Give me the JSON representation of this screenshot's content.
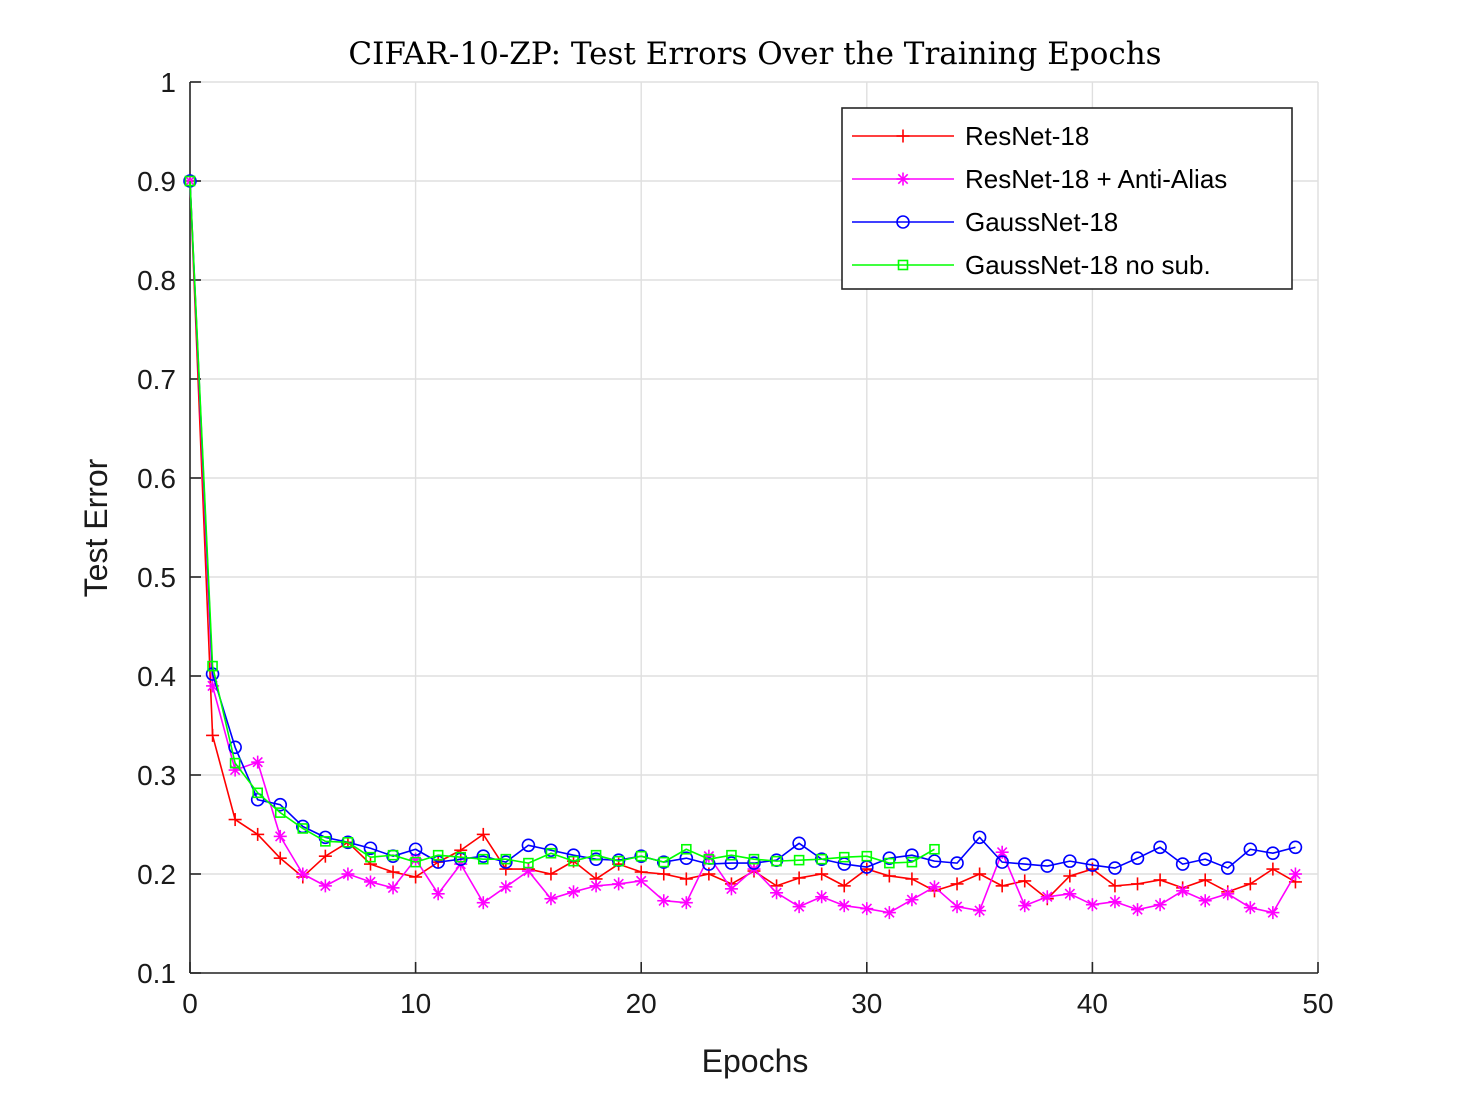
{
  "chart_data": {
    "type": "line",
    "title": "CIFAR-10-ZP: Test Errors Over the Training Epochs",
    "xlabel": "Epochs",
    "ylabel": "Test Error",
    "xlim": [
      0,
      50
    ],
    "ylim": [
      0.1,
      1
    ],
    "x_ticks": [
      0,
      10,
      20,
      30,
      40,
      50
    ],
    "y_ticks": [
      0.1,
      0.2,
      0.3,
      0.4,
      0.5,
      0.6,
      0.7,
      0.8,
      0.9,
      1
    ],
    "x_tick_labels": [
      "0",
      "10",
      "20",
      "30",
      "40",
      "50"
    ],
    "y_tick_labels": [
      "0.1",
      "0.2",
      "0.3",
      "0.4",
      "0.5",
      "0.6",
      "0.7",
      "0.8",
      "0.9",
      "1"
    ],
    "grid": true,
    "legend_position": "top-right",
    "series": [
      {
        "name": "ResNet-18",
        "color": "#ff0000",
        "marker": "plus",
        "x": [
          0,
          1,
          2,
          3,
          4,
          5,
          6,
          7,
          8,
          9,
          10,
          11,
          12,
          13,
          14,
          15,
          16,
          17,
          18,
          19,
          20,
          21,
          22,
          23,
          24,
          25,
          26,
          27,
          28,
          29,
          30,
          31,
          32,
          33,
          34,
          35,
          36,
          37,
          38,
          39,
          40,
          41,
          42,
          43,
          44,
          45,
          46,
          47,
          48,
          49
        ],
        "y": [
          0.9,
          0.34,
          0.255,
          0.24,
          0.216,
          0.197,
          0.218,
          0.232,
          0.21,
          0.202,
          0.197,
          0.212,
          0.224,
          0.24,
          0.205,
          0.205,
          0.2,
          0.213,
          0.195,
          0.21,
          0.202,
          0.2,
          0.195,
          0.2,
          0.19,
          0.203,
          0.188,
          0.196,
          0.2,
          0.188,
          0.205,
          0.198,
          0.195,
          0.183,
          0.19,
          0.2,
          0.188,
          0.193,
          0.175,
          0.198,
          0.205,
          0.188,
          0.19,
          0.194,
          0.186,
          0.194,
          0.182,
          0.19,
          0.205,
          0.192
        ]
      },
      {
        "name": "ResNet-18 + Anti-Alias",
        "color": "#ff00ff",
        "marker": "asterisk",
        "x": [
          0,
          1,
          2,
          3,
          4,
          5,
          6,
          7,
          8,
          9,
          10,
          11,
          12,
          13,
          14,
          15,
          16,
          17,
          18,
          19,
          20,
          21,
          22,
          23,
          24,
          25,
          26,
          27,
          28,
          29,
          30,
          31,
          32,
          33,
          34,
          35,
          36,
          37,
          38,
          39,
          40,
          41,
          42,
          43,
          44,
          45,
          46,
          47,
          48,
          49
        ],
        "y": [
          0.9,
          0.39,
          0.305,
          0.313,
          0.238,
          0.2,
          0.188,
          0.2,
          0.192,
          0.186,
          0.215,
          0.18,
          0.21,
          0.171,
          0.187,
          0.203,
          0.175,
          0.182,
          0.188,
          0.19,
          0.193,
          0.173,
          0.171,
          0.218,
          0.185,
          0.205,
          0.181,
          0.167,
          0.177,
          0.168,
          0.165,
          0.161,
          0.174,
          0.187,
          0.167,
          0.163,
          0.222,
          0.168,
          0.177,
          0.18,
          0.169,
          0.172,
          0.164,
          0.169,
          0.183,
          0.173,
          0.18,
          0.166,
          0.161,
          0.2
        ]
      },
      {
        "name": "GaussNet-18",
        "color": "#0000ff",
        "marker": "circle",
        "x": [
          0,
          1,
          2,
          3,
          4,
          5,
          6,
          7,
          8,
          9,
          10,
          11,
          12,
          13,
          14,
          15,
          16,
          17,
          18,
          19,
          20,
          21,
          22,
          23,
          24,
          25,
          26,
          27,
          28,
          29,
          30,
          31,
          32,
          33,
          34,
          35,
          36,
          37,
          38,
          39,
          40,
          41,
          42,
          43,
          44,
          45,
          46,
          47,
          48,
          49
        ],
        "y": [
          0.9,
          0.402,
          0.328,
          0.275,
          0.27,
          0.248,
          0.237,
          0.232,
          0.226,
          0.218,
          0.225,
          0.212,
          0.215,
          0.218,
          0.212,
          0.229,
          0.224,
          0.219,
          0.215,
          0.214,
          0.218,
          0.212,
          0.216,
          0.21,
          0.211,
          0.211,
          0.214,
          0.231,
          0.215,
          0.21,
          0.207,
          0.216,
          0.219,
          0.213,
          0.211,
          0.237,
          0.212,
          0.21,
          0.208,
          0.213,
          0.209,
          0.206,
          0.216,
          0.227,
          0.21,
          0.215,
          0.206,
          0.225,
          0.221,
          0.227
        ]
      },
      {
        "name": "GaussNet-18 no sub.",
        "color": "#00ff00",
        "marker": "square",
        "x": [
          0,
          1,
          2,
          3,
          4,
          5,
          6,
          7,
          8,
          9,
          10,
          11,
          12,
          13,
          14,
          15,
          16,
          17,
          18,
          19,
          20,
          21,
          22,
          23,
          24,
          25,
          26,
          27,
          28,
          29,
          30,
          31,
          32,
          33
        ],
        "y": [
          0.9,
          0.41,
          0.312,
          0.282,
          0.262,
          0.246,
          0.233,
          0.232,
          0.217,
          0.219,
          0.212,
          0.219,
          0.217,
          0.215,
          0.215,
          0.211,
          0.221,
          0.213,
          0.219,
          0.213,
          0.218,
          0.212,
          0.225,
          0.215,
          0.219,
          0.215,
          0.213,
          0.214,
          0.215,
          0.217,
          0.218,
          0.211,
          0.212,
          0.225
        ]
      }
    ]
  }
}
